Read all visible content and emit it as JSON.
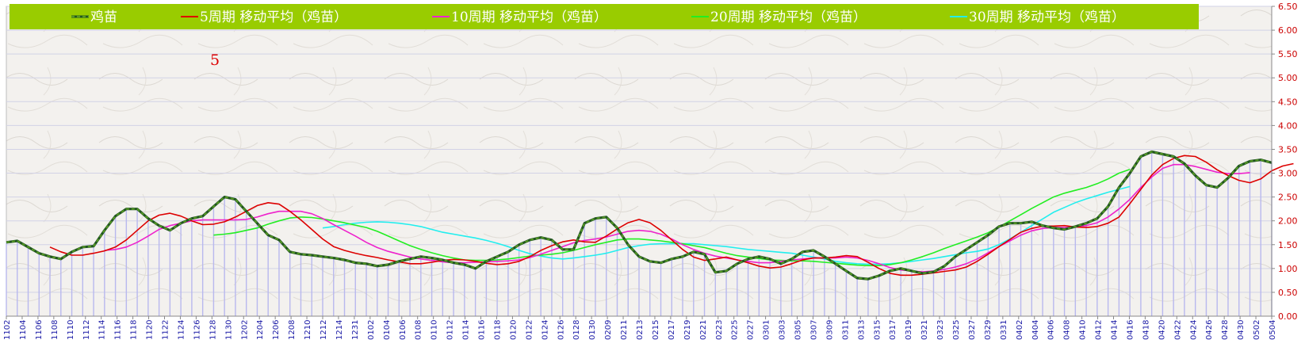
{
  "chart_data": {
    "type": "line",
    "title": "",
    "annotation": "5",
    "ylim": [
      0,
      6.5
    ],
    "y_ticks": [
      "0.00",
      "0.50",
      "1.00",
      "1.50",
      "2.00",
      "2.50",
      "3.00",
      "3.50",
      "4.00",
      "4.50",
      "5.00",
      "5.50",
      "6.00",
      "6.50"
    ],
    "x_tick_labels": [
      "1102",
      "1104",
      "1106",
      "1108",
      "1110",
      "1112",
      "1114",
      "1116",
      "1118",
      "1120",
      "1122",
      "1124",
      "1126",
      "1128",
      "1130",
      "1202",
      "1204",
      "1206",
      "1208",
      "1210",
      "1212",
      "1214",
      "1231",
      "0102",
      "0104",
      "0106",
      "0108",
      "0110",
      "0112",
      "0114",
      "0116",
      "0118",
      "0120",
      "0122",
      "0124",
      "0126",
      "0128",
      "0130",
      "0209",
      "0211",
      "0213",
      "0215",
      "0217",
      "0219",
      "0221",
      "0223",
      "0225",
      "0227",
      "0301",
      "0303",
      "0305",
      "0307",
      "0309",
      "0311",
      "0313",
      "0315",
      "0317",
      "0319",
      "0321",
      "0323",
      "0325",
      "0327",
      "0329",
      "0331",
      "0402",
      "0404",
      "0406",
      "0408",
      "0410",
      "0412",
      "0414",
      "0416",
      "0418",
      "0420",
      "0422",
      "0424",
      "0426",
      "0428",
      "0430",
      "0502",
      "0504"
    ],
    "grid": true,
    "legend_position": "top",
    "colors": {
      "legend_bg": "#99cc00",
      "axis_text_y": "#cc0000",
      "axis_text_x": "#1a1aa6",
      "bars": "#b8b8ee",
      "main_dash": "#559922"
    },
    "series": [
      {
        "name": "鸡苗",
        "color": "#225522",
        "start_index": 0,
        "values": [
          1.55,
          1.58,
          1.45,
          1.32,
          1.25,
          1.2,
          1.35,
          1.45,
          1.47,
          1.8,
          2.1,
          2.25,
          2.25,
          2.05,
          1.9,
          1.8,
          1.95,
          2.05,
          2.1,
          2.3,
          2.5,
          2.45,
          2.2,
          1.95,
          1.7,
          1.6,
          1.35,
          1.3,
          1.28,
          1.25,
          1.22,
          1.18,
          1.12,
          1.1,
          1.05,
          1.08,
          1.15,
          1.2,
          1.25,
          1.22,
          1.18,
          1.12,
          1.08,
          1.0,
          1.15,
          1.25,
          1.35,
          1.5,
          1.6,
          1.65,
          1.6,
          1.4,
          1.4,
          1.95,
          2.05,
          2.08,
          1.85,
          1.5,
          1.25,
          1.15,
          1.12,
          1.2,
          1.25,
          1.35,
          1.3,
          0.92,
          0.95,
          1.1,
          1.2,
          1.25,
          1.2,
          1.1,
          1.2,
          1.35,
          1.38,
          1.25,
          1.1,
          0.95,
          0.8,
          0.78,
          0.85,
          0.95,
          1.0,
          0.95,
          0.9,
          0.93,
          1.05,
          1.25,
          1.4,
          1.55,
          1.7,
          1.88,
          1.95,
          1.95,
          1.98,
          1.9,
          1.85,
          1.82,
          1.88,
          1.95,
          2.05,
          2.3,
          2.7,
          3.0,
          3.35,
          3.45,
          3.4,
          3.35,
          3.2,
          2.95,
          2.75,
          2.7,
          2.9,
          3.15,
          3.25,
          3.28,
          3.22
        ]
      },
      {
        "name": "5周期 移动平均（鸡苗）",
        "color": "#dd0000",
        "start_index": 4,
        "values": [
          1.45,
          1.35,
          1.28,
          1.28,
          1.32,
          1.37,
          1.45,
          1.6,
          1.8,
          2.0,
          2.12,
          2.16,
          2.1,
          2.0,
          1.92,
          1.93,
          1.98,
          2.08,
          2.2,
          2.32,
          2.38,
          2.35,
          2.2,
          2.02,
          1.82,
          1.62,
          1.46,
          1.38,
          1.32,
          1.27,
          1.23,
          1.18,
          1.14,
          1.1,
          1.1,
          1.13,
          1.17,
          1.19,
          1.18,
          1.15,
          1.11,
          1.08,
          1.1,
          1.15,
          1.25,
          1.38,
          1.48,
          1.56,
          1.6,
          1.56,
          1.55,
          1.68,
          1.83,
          1.96,
          2.03,
          1.96,
          1.8,
          1.6,
          1.4,
          1.24,
          1.17,
          1.2,
          1.24,
          1.18,
          1.12,
          1.05,
          1.01,
          1.03,
          1.1,
          1.18,
          1.22,
          1.22,
          1.24,
          1.27,
          1.25,
          1.13,
          1.0,
          0.9,
          0.86,
          0.86,
          0.88,
          0.91,
          0.94,
          0.97,
          1.03,
          1.15,
          1.3,
          1.46,
          1.61,
          1.76,
          1.84,
          1.89,
          1.89,
          1.9,
          1.87,
          1.86,
          1.88,
          1.95,
          2.08,
          2.36,
          2.66,
          2.96,
          3.18,
          3.31,
          3.37,
          3.35,
          3.23,
          3.07,
          2.95,
          2.85,
          2.8,
          2.88,
          3.05,
          3.15,
          3.2
        ]
      },
      {
        "name": "10周期 移动平均（鸡苗）",
        "color": "#ee22cc",
        "start_index": 9,
        "values": [
          1.38,
          1.4,
          1.45,
          1.55,
          1.68,
          1.82,
          1.9,
          1.95,
          2.0,
          2.02,
          2.02,
          2.02,
          2.02,
          2.03,
          2.08,
          2.15,
          2.2,
          2.2,
          2.2,
          2.15,
          2.05,
          1.92,
          1.8,
          1.68,
          1.55,
          1.44,
          1.36,
          1.3,
          1.24,
          1.2,
          1.17,
          1.14,
          1.12,
          1.12,
          1.13,
          1.14,
          1.15,
          1.16,
          1.18,
          1.23,
          1.3,
          1.38,
          1.46,
          1.54,
          1.59,
          1.62,
          1.66,
          1.72,
          1.78,
          1.8,
          1.78,
          1.72,
          1.62,
          1.5,
          1.4,
          1.32,
          1.26,
          1.22,
          1.18,
          1.15,
          1.12,
          1.12,
          1.15,
          1.18,
          1.2,
          1.22,
          1.22,
          1.22,
          1.24,
          1.22,
          1.17,
          1.1,
          1.02,
          0.97,
          0.95,
          0.93,
          0.95,
          0.98,
          1.03,
          1.1,
          1.2,
          1.33,
          1.46,
          1.58,
          1.7,
          1.79,
          1.84,
          1.86,
          1.86,
          1.87,
          1.9,
          1.96,
          2.08,
          2.25,
          2.45,
          2.7,
          2.92,
          3.1,
          3.18,
          3.18,
          3.14,
          3.08,
          3.02,
          2.99,
          2.99,
          3.01
        ]
      },
      {
        "name": "20周期 移动平均（鸡苗）",
        "color": "#22ee22",
        "start_index": 19,
        "values": [
          1.7,
          1.72,
          1.75,
          1.8,
          1.85,
          1.93,
          2.0,
          2.06,
          2.08,
          2.07,
          2.04,
          2.0,
          1.96,
          1.91,
          1.86,
          1.78,
          1.68,
          1.58,
          1.48,
          1.4,
          1.33,
          1.27,
          1.22,
          1.18,
          1.17,
          1.17,
          1.18,
          1.2,
          1.23,
          1.26,
          1.28,
          1.3,
          1.33,
          1.38,
          1.44,
          1.5,
          1.55,
          1.6,
          1.62,
          1.62,
          1.6,
          1.58,
          1.55,
          1.52,
          1.48,
          1.44,
          1.38,
          1.32,
          1.27,
          1.24,
          1.21,
          1.18,
          1.17,
          1.16,
          1.16,
          1.15,
          1.13,
          1.11,
          1.09,
          1.07,
          1.06,
          1.06,
          1.08,
          1.12,
          1.18,
          1.25,
          1.33,
          1.42,
          1.5,
          1.58,
          1.66,
          1.75,
          1.87,
          2.0,
          2.13,
          2.26,
          2.38,
          2.5,
          2.58,
          2.64,
          2.7,
          2.78,
          2.88,
          3.0,
          3.08
        ]
      },
      {
        "name": "30周期 移动平均（鸡苗）",
        "color": "#22eeee",
        "start_index": 29,
        "values": [
          1.85,
          1.88,
          1.92,
          1.95,
          1.97,
          1.98,
          1.97,
          1.95,
          1.92,
          1.88,
          1.82,
          1.76,
          1.72,
          1.68,
          1.64,
          1.59,
          1.53,
          1.46,
          1.38,
          1.31,
          1.26,
          1.22,
          1.2,
          1.22,
          1.25,
          1.28,
          1.32,
          1.38,
          1.44,
          1.48,
          1.51,
          1.52,
          1.52,
          1.52,
          1.52,
          1.5,
          1.48,
          1.46,
          1.43,
          1.4,
          1.38,
          1.36,
          1.34,
          1.32,
          1.28,
          1.24,
          1.2,
          1.15,
          1.12,
          1.1,
          1.09,
          1.09,
          1.1,
          1.12,
          1.15,
          1.18,
          1.21,
          1.25,
          1.29,
          1.33,
          1.36,
          1.41,
          1.5,
          1.62,
          1.76,
          1.9,
          2.04,
          2.18,
          2.28,
          2.38,
          2.46,
          2.53,
          2.6,
          2.66,
          2.72
        ]
      }
    ],
    "bars": {
      "name": "鸡苗",
      "note": "per-period columns mirroring the 鸡苗 series"
    }
  }
}
